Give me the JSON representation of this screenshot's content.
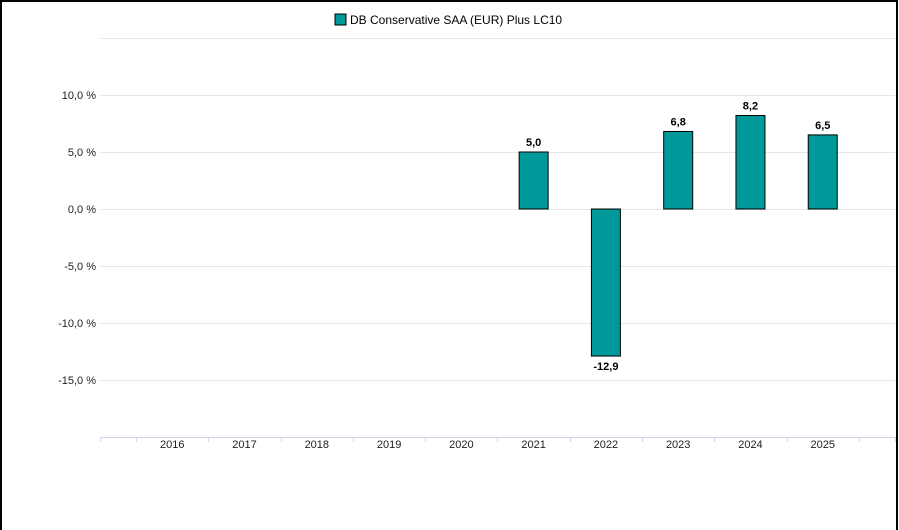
{
  "chart_data": {
    "type": "bar",
    "legend": "top-center",
    "grid": true,
    "categories": [
      "2016",
      "2017",
      "2018",
      "2019",
      "2020",
      "2021",
      "2022",
      "2023",
      "2024",
      "2025"
    ],
    "series": [
      {
        "name": "DB Conservative SAA (EUR) Plus LC10",
        "color": "#00999a",
        "border_color": "#000000",
        "values": [
          null,
          null,
          null,
          null,
          null,
          5.0,
          -12.9,
          6.8,
          8.2,
          6.5
        ],
        "data_labels": [
          null,
          null,
          null,
          null,
          null,
          "5,0",
          "-12,9",
          "6,8",
          "8,2",
          "6,5"
        ]
      }
    ],
    "ylim": [
      -20,
      15
    ],
    "yticks": [
      {
        "value": 10,
        "label": "10,0 %"
      },
      {
        "value": 5,
        "label": "5,0 %"
      },
      {
        "value": 0,
        "label": "0,0 %"
      },
      {
        "value": -5,
        "label": "-5,0 %"
      },
      {
        "value": -10,
        "label": "-10,0 %"
      },
      {
        "value": -15,
        "label": "-15,0 %"
      }
    ],
    "grid_color": "#e6e6e6",
    "axis_color": "#ccd6eb"
  },
  "frame": {
    "border_color": "#000000"
  }
}
